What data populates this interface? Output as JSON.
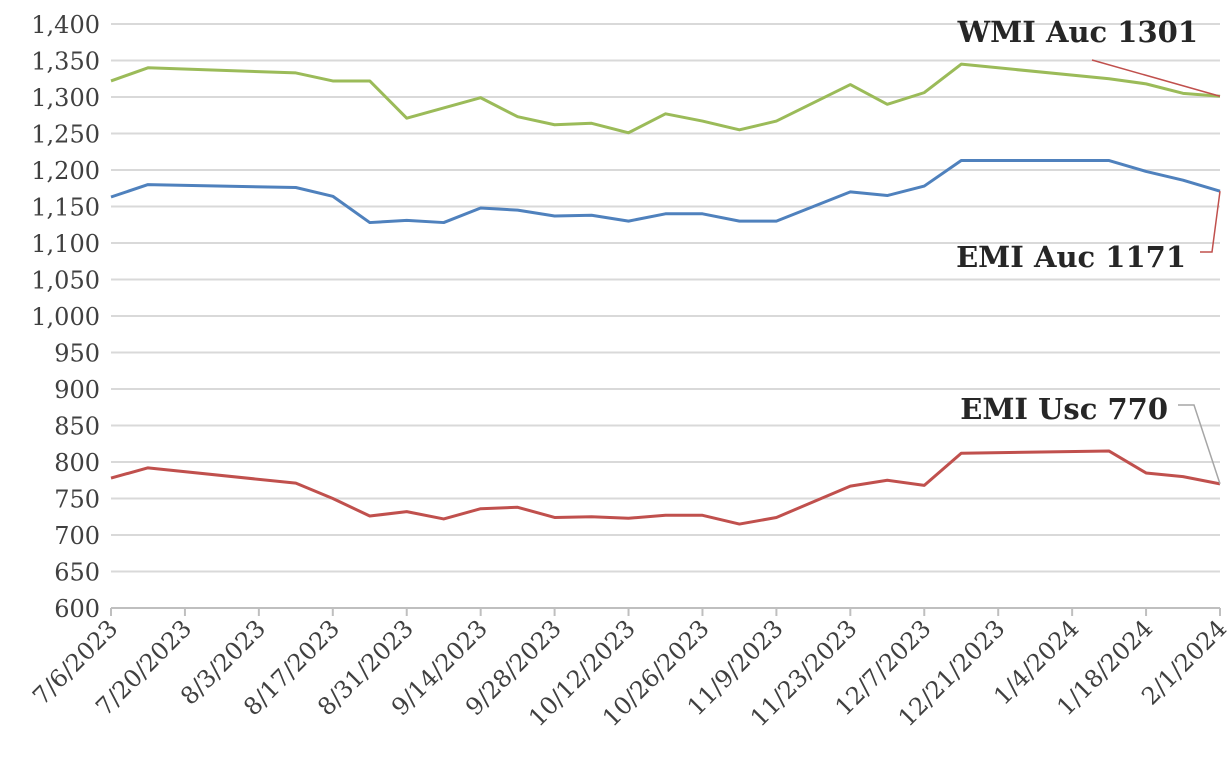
{
  "chart_data": {
    "type": "line",
    "x": [
      "2023-07-06",
      "2023-07-13",
      "2023-08-10",
      "2023-08-17",
      "2023-08-24",
      "2023-08-31",
      "2023-09-07",
      "2023-09-14",
      "2023-09-21",
      "2023-09-28",
      "2023-10-05",
      "2023-10-12",
      "2023-10-19",
      "2023-10-26",
      "2023-11-02",
      "2023-11-09",
      "2023-11-23",
      "2023-11-30",
      "2023-12-07",
      "2023-12-14",
      "2024-01-11",
      "2024-01-18",
      "2024-01-25",
      "2024-02-01"
    ],
    "series": [
      {
        "color": "#9bbb59",
        "values": [
          1322,
          1340,
          1333,
          1322,
          1322,
          1271,
          1285,
          1299,
          1273,
          1262,
          1264,
          1251,
          1277,
          1267,
          1255,
          1267,
          1317,
          1290,
          1306,
          1345,
          1325,
          1318,
          1305,
          1301
        ]
      },
      {
        "color": "#4f81bd",
        "values": [
          1163,
          1180,
          1176,
          1164,
          1128,
          1131,
          1128,
          1148,
          1145,
          1137,
          1138,
          1130,
          1140,
          1140,
          1130,
          1130,
          1170,
          1165,
          1178,
          1213,
          1213,
          1198,
          1186,
          1171
        ]
      },
      {
        "color": "#c0504d",
        "values": [
          778,
          792,
          771,
          750,
          726,
          732,
          722,
          736,
          738,
          724,
          725,
          723,
          727,
          727,
          715,
          724,
          767,
          775,
          768,
          812,
          815,
          785,
          780,
          770
        ]
      }
    ],
    "annotations": [
      {
        "text": "WMI Auc 1301",
        "color": "#c0504d"
      },
      {
        "text": "EMI Auc 1171",
        "color": "#c0504d"
      },
      {
        "text": "EMI Usc 770",
        "color": "#a6a6a6"
      }
    ],
    "xlim": [
      "2023-07-06",
      "2024-02-01"
    ],
    "xticks": [
      {
        "value": "2023-07-06",
        "label": "7/6/2023"
      },
      {
        "value": "2023-07-20",
        "label": "7/20/2023"
      },
      {
        "value": "2023-08-03",
        "label": "8/3/2023"
      },
      {
        "value": "2023-08-17",
        "label": "8/17/2023"
      },
      {
        "value": "2023-08-31",
        "label": "8/31/2023"
      },
      {
        "value": "2023-09-14",
        "label": "9/14/2023"
      },
      {
        "value": "2023-09-28",
        "label": "9/28/2023"
      },
      {
        "value": "2023-10-12",
        "label": "10/12/2023"
      },
      {
        "value": "2023-10-26",
        "label": "10/26/2023"
      },
      {
        "value": "2023-11-09",
        "label": "11/9/2023"
      },
      {
        "value": "2023-11-23",
        "label": "11/23/2023"
      },
      {
        "value": "2023-12-07",
        "label": "12/7/2023"
      },
      {
        "value": "2023-12-21",
        "label": "12/21/2023"
      },
      {
        "value": "2024-01-04",
        "label": "1/4/2024"
      },
      {
        "value": "2024-01-18",
        "label": "1/18/2024"
      },
      {
        "value": "2024-02-01",
        "label": "2/1/2024"
      }
    ],
    "ylim": [
      600,
      1400
    ],
    "yticks": [
      600,
      650,
      700,
      750,
      800,
      850,
      900,
      950,
      {
        "value": 1000,
        "label": "1,000"
      },
      {
        "value": 1050,
        "label": "1,050"
      },
      {
        "value": 1100,
        "label": "1,100"
      },
      {
        "value": 1150,
        "label": "1,150"
      },
      {
        "value": 1200,
        "label": "1,200"
      },
      {
        "value": 1250,
        "label": "1,250"
      },
      {
        "value": 1300,
        "label": "1,300"
      },
      {
        "value": 1350,
        "label": "1,350"
      },
      {
        "value": 1400,
        "label": "1,400"
      }
    ],
    "grid": true
  }
}
